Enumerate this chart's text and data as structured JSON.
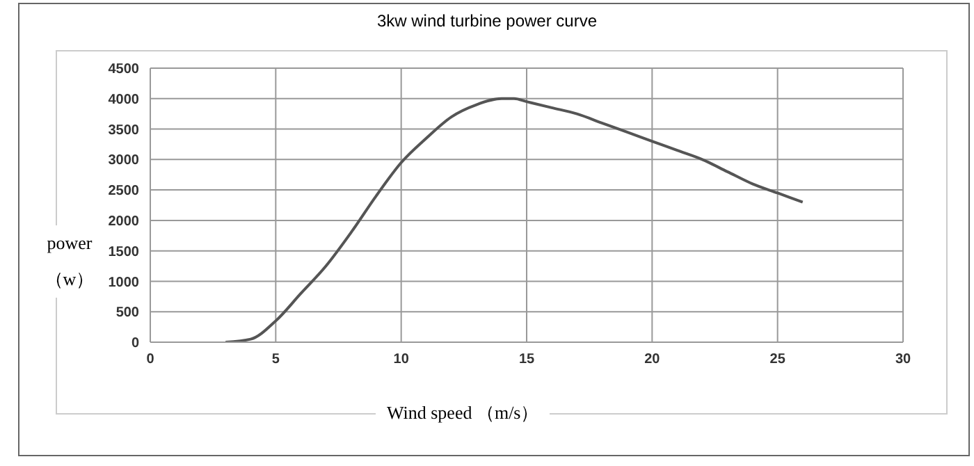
{
  "chart_data": {
    "type": "line",
    "title": "3kw wind turbine power curve",
    "xlabel": "Wind speed （m/s）",
    "ylabel": "power （w）",
    "x": [
      3,
      4,
      5,
      6,
      7,
      8,
      9,
      10,
      11,
      12,
      13,
      14,
      14.5,
      15,
      16,
      17,
      18,
      19,
      20,
      21,
      22,
      23,
      24,
      25,
      26
    ],
    "series": [
      {
        "color": "#555555",
        "values": [
          0,
          50,
          350,
          800,
          1250,
          1800,
          2400,
          2950,
          3350,
          3700,
          3900,
          4000,
          4000,
          3950,
          3850,
          3750,
          3600,
          3450,
          3300,
          3150,
          3000,
          2800,
          2600,
          2450,
          2300
        ]
      }
    ],
    "xlim": [
      0,
      30
    ],
    "xticks": [
      0,
      5,
      10,
      15,
      20,
      25,
      30
    ],
    "ylim": [
      0,
      4500
    ],
    "yticks": [
      0,
      500,
      1000,
      1500,
      2000,
      2500,
      3000,
      3500,
      4000,
      4500
    ],
    "grid": true,
    "marker": "none",
    "line_style": "solid"
  }
}
